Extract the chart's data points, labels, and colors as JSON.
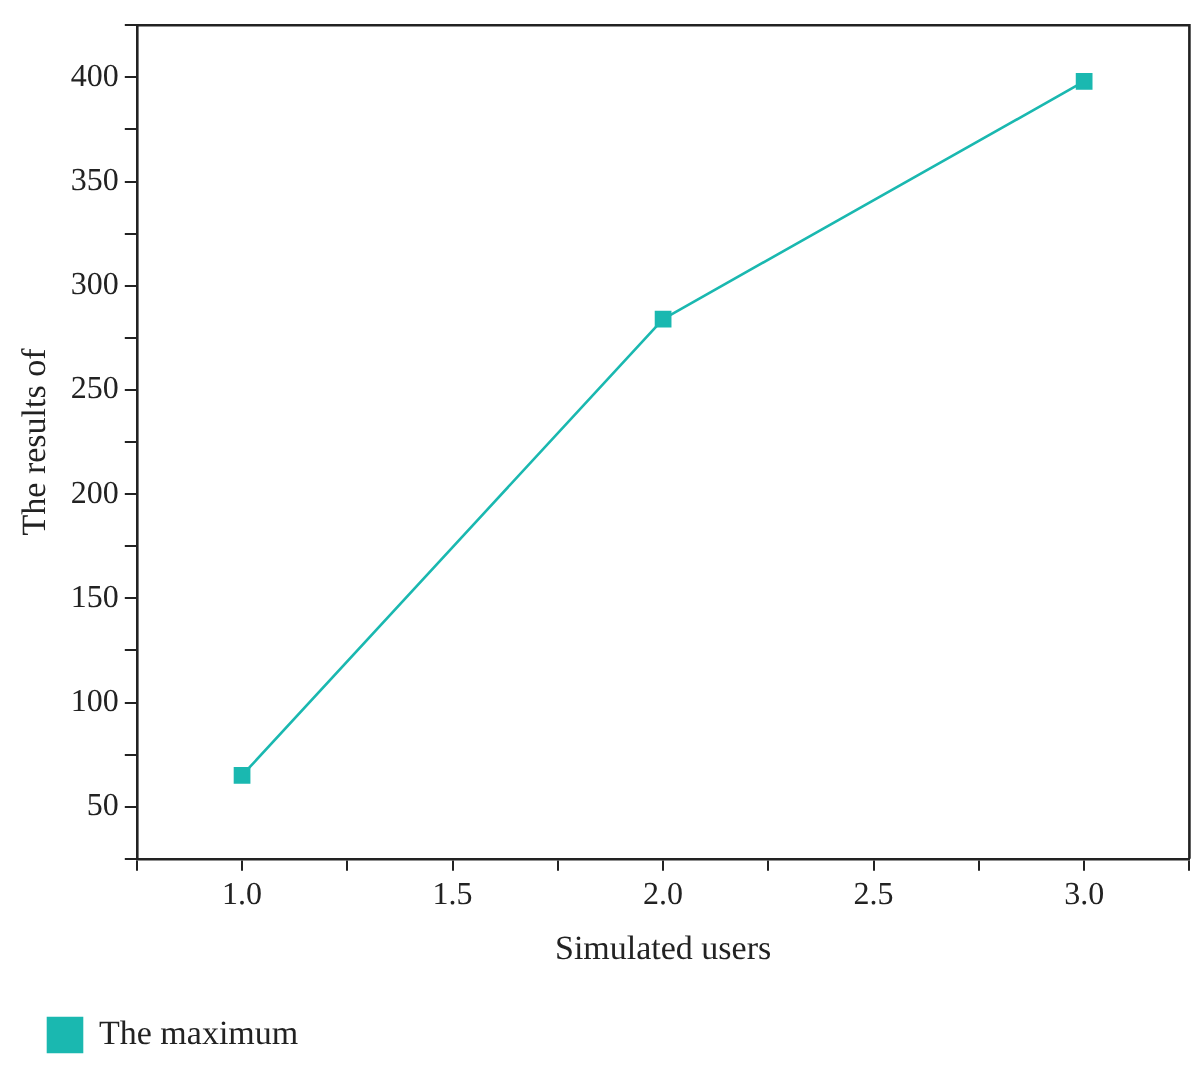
{
  "chart_data": {
    "type": "line",
    "xlabel": "Simulated users",
    "ylabel": "The results of",
    "x": [
      1.0,
      2.0,
      3.0
    ],
    "series": [
      {
        "name": "The maximum",
        "color": "#1ab8b0",
        "values": [
          65,
          284,
          398
        ]
      }
    ],
    "xlim": [
      0.75,
      3.25
    ],
    "xticks": [
      {
        "value": 0.75,
        "label": null
      },
      {
        "value": 1,
        "label": "1.0"
      },
      {
        "value": 1.25,
        "label": null
      },
      {
        "value": 1.5,
        "label": "1.5"
      },
      {
        "value": 1.75,
        "label": null
      },
      {
        "value": 2,
        "label": "2.0"
      },
      {
        "value": 2.25,
        "label": null
      },
      {
        "value": 2.5,
        "label": "2.5"
      },
      {
        "value": 2.75,
        "label": null
      },
      {
        "value": 3,
        "label": "3.0"
      },
      {
        "value": 3.25,
        "label": null
      }
    ],
    "ylim": [
      25,
      425
    ],
    "yticks": [
      {
        "value": 25,
        "label": null
      },
      50,
      {
        "value": 75,
        "label": null
      },
      100,
      {
        "value": 125,
        "label": null
      },
      150,
      {
        "value": 175,
        "label": null
      },
      200,
      {
        "value": 225,
        "label": null
      },
      250,
      {
        "value": 275,
        "label": null
      },
      300,
      {
        "value": 325,
        "label": null
      },
      350,
      {
        "value": 375,
        "label": null
      },
      400,
      {
        "value": 425,
        "label": null
      }
    ],
    "grid": false,
    "legend": "bottom left",
    "marker": "square",
    "line_style": "solid"
  }
}
